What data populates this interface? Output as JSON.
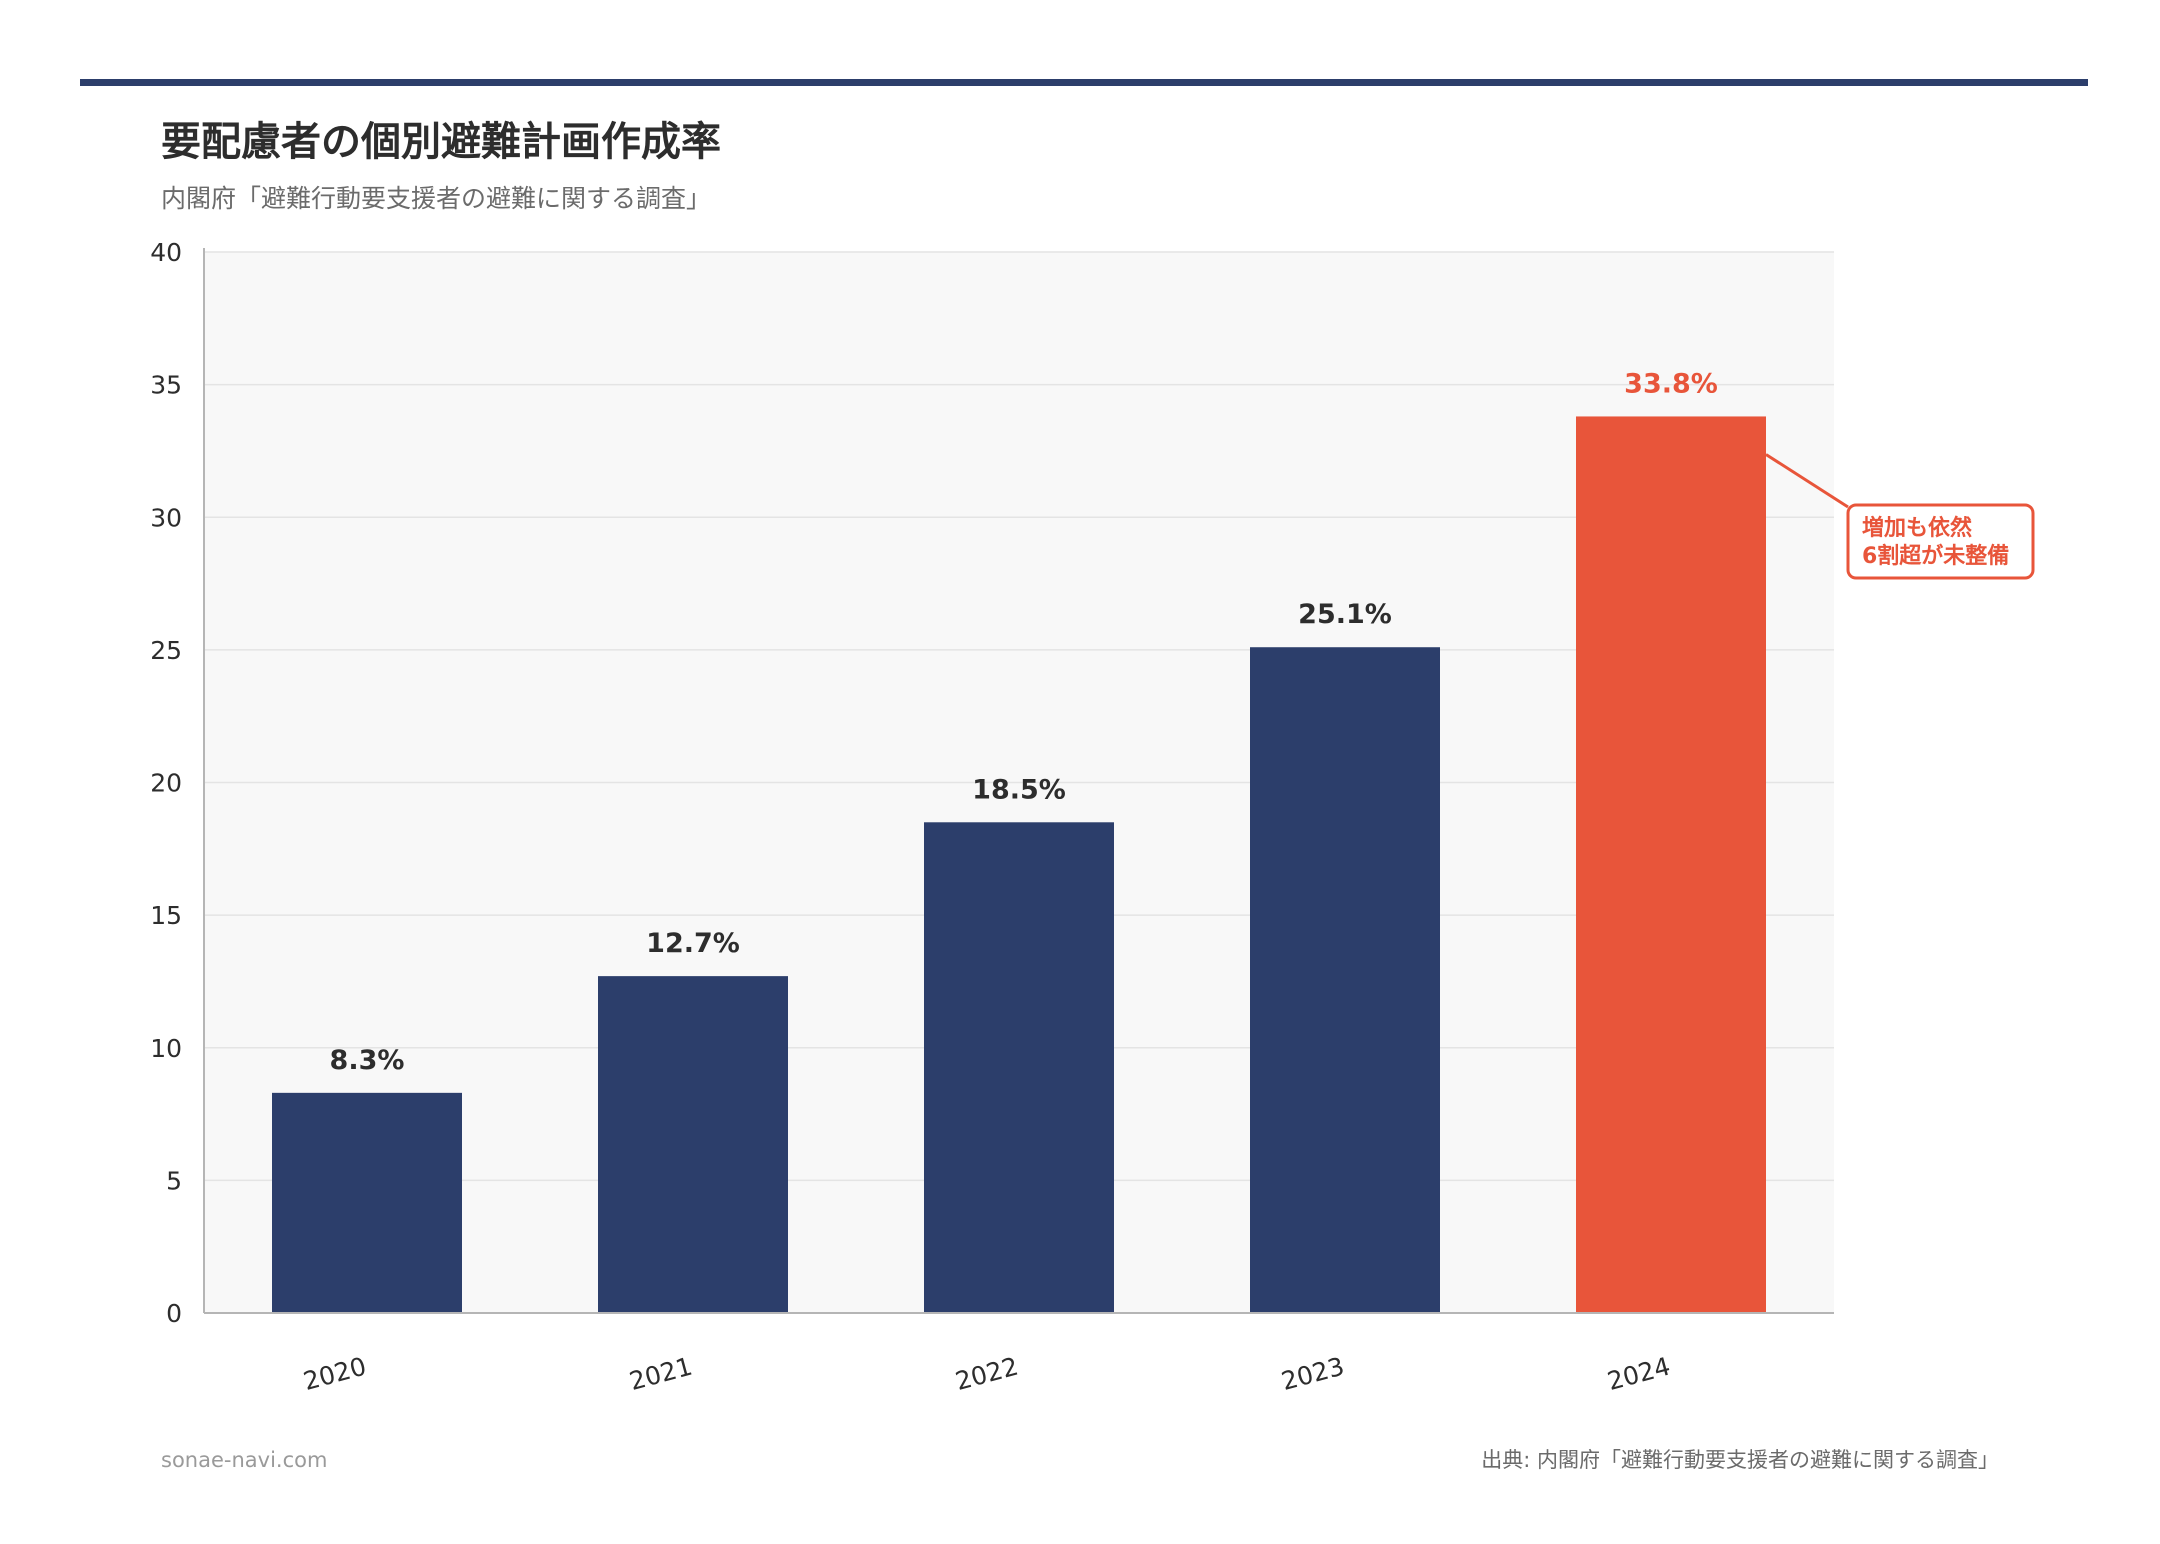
{
  "header": {
    "title": "要配慮者の個別避難計画作成率",
    "subtitle": "内閣府「避難行動要支援者の避難に関する調査」"
  },
  "footer": {
    "site": "sonae-navi.com",
    "source": "出典: 内閣府「避難行動要支援者の避難に関する調査」"
  },
  "colors": {
    "accent_rule": "#2c3e6b",
    "bar_default": "#2c3e6b",
    "bar_highlight": "#e8553a",
    "plot_background": "#f8f8f8",
    "gridline": "#e4e4e4",
    "text_dark": "#2d2d2d",
    "text_muted": "#6b6b6b",
    "text_light": "#9a9a9a"
  },
  "chart_data": {
    "type": "bar",
    "categories": [
      "2020",
      "2021",
      "2022",
      "2023",
      "2024"
    ],
    "values": [
      8.3,
      12.7,
      18.5,
      25.1,
      33.8
    ],
    "value_labels": [
      "8.3%",
      "12.7%",
      "18.5%",
      "25.1%",
      "33.8%"
    ],
    "highlight_index": 4,
    "xlabel": "",
    "ylabel": "",
    "ylim": [
      0,
      40
    ],
    "yticks": [
      0,
      5,
      10,
      15,
      20,
      25,
      30,
      35,
      40
    ],
    "grid": true,
    "legend": "none",
    "annotation": {
      "target_index": 4,
      "lines": [
        "増加も依然",
        "6割超が未整備"
      ]
    }
  }
}
